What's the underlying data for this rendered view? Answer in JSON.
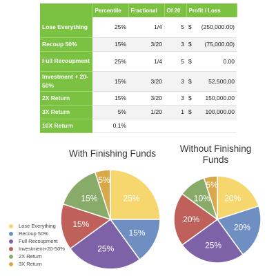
{
  "table": {
    "headers": [
      "",
      "Percentile",
      "Fractional",
      "Of 20",
      "Profit / Loss"
    ],
    "rows": [
      {
        "label": "Lose Everything",
        "percentile": "25%",
        "fractional": "1/4",
        "of20": "5",
        "currency": "$",
        "amount": "(250,000.00)"
      },
      {
        "label": "Recoup 50%",
        "percentile": "15%",
        "fractional": "3/20",
        "of20": "3",
        "currency": "$",
        "amount": "(75,000.00)"
      },
      {
        "label": "Full Recoupment",
        "percentile": "25%",
        "fractional": "1/4",
        "of20": "5",
        "currency": "$",
        "amount": "0.00"
      },
      {
        "label": "Investment + 20-50%",
        "percentile": "15%",
        "fractional": "3/20",
        "of20": "3",
        "currency": "$",
        "amount": "52,500.00"
      },
      {
        "label": "2X Return",
        "percentile": "15%",
        "fractional": "3/20",
        "of20": "3",
        "currency": "$",
        "amount": "150,000.00"
      },
      {
        "label": "3X Return",
        "percentile": "5%",
        "fractional": "1/20",
        "of20": "1",
        "currency": "$",
        "amount": "100,000.00"
      },
      {
        "label": "10X Return",
        "percentile": "0.1%",
        "fractional": "",
        "of20": "",
        "currency": "",
        "amount": ""
      }
    ]
  },
  "chart_data": [
    {
      "type": "pie",
      "title": "With Finishing Funds",
      "categories": [
        "Lose Everything",
        "Recoup 50%",
        "Full Recoupment",
        "Investment+20-50%",
        "2X Return",
        "3X Return"
      ],
      "values": [
        25,
        15,
        25,
        15,
        15,
        5
      ],
      "labels": [
        "25%",
        "15%",
        "25%",
        "15%",
        "15%",
        "5%"
      ]
    },
    {
      "type": "pie",
      "title": "Without Finishing Funds",
      "categories": [
        "Lose Everything",
        "Recoup 50%",
        "Full Recoupment",
        "Investment+20-50%",
        "2X Return",
        "3X Return"
      ],
      "values": [
        20,
        20,
        25,
        20,
        10,
        5
      ],
      "labels": [
        "20%",
        "20%",
        "25%",
        "20%",
        "10%",
        "5%"
      ]
    }
  ],
  "legend": {
    "items": [
      "Lose Everything",
      "Recoup 50%",
      "Full Recoupment",
      "Investment+20-50%",
      "2X Return",
      "3X Return"
    ],
    "placement": "bottom-left"
  },
  "colors": [
    "#f5d76e",
    "#6f8fc2",
    "#7e62a8",
    "#c0605a",
    "#88ab6a",
    "#d8a94a"
  ]
}
